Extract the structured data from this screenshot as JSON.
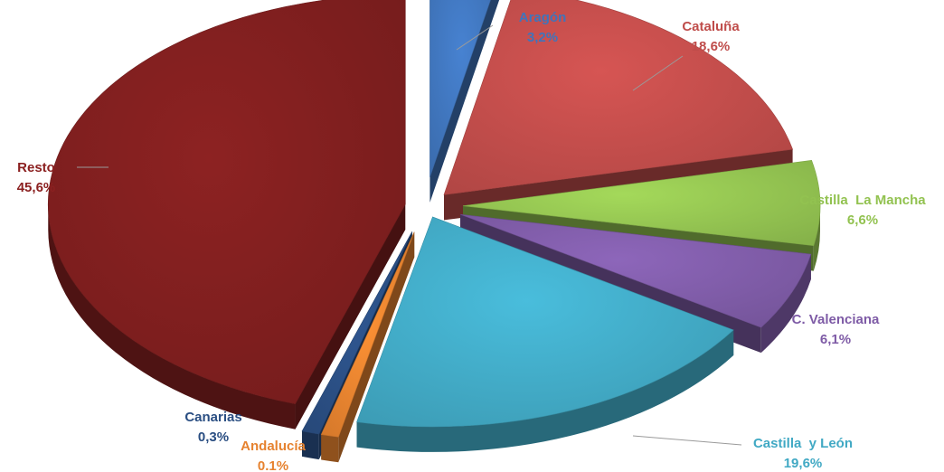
{
  "chart_data": {
    "type": "pie",
    "style": "3d-exploded",
    "slices": [
      {
        "label": "Aragón",
        "value": 3.2,
        "value_text": "3,2%",
        "color": "#3F74BB"
      },
      {
        "label": "Cataluña",
        "value": 18.6,
        "value_text": "18,6%",
        "color": "#BF4C4A"
      },
      {
        "label": "Castilla  La Mancha",
        "value": 6.6,
        "value_text": "6,6%",
        "color": "#92C250"
      },
      {
        "label": "C. Valenciana",
        "value": 6.1,
        "value_text": "6,1%",
        "color": "#7E5BA6"
      },
      {
        "label": "Castilla  y León",
        "value": 19.6,
        "value_text": "19,6%",
        "color": "#41A9C4"
      },
      {
        "label": "Andalucía",
        "value": 0.1,
        "value_text": "0.1%",
        "color": "#E6822F"
      },
      {
        "label": "Canarias",
        "value": 0.3,
        "value_text": "0,3%",
        "color": "#2A4E82"
      },
      {
        "label": "Resto",
        "value": 45.6,
        "value_text": "45,6%",
        "color": "#7E1E1E"
      }
    ],
    "label_colors": [
      "#3F74BB",
      "#BF4C4A",
      "#92C250",
      "#7E5BA6",
      "#41A9C4",
      "#E6822F",
      "#2A4E82",
      "#8B2020"
    ]
  }
}
